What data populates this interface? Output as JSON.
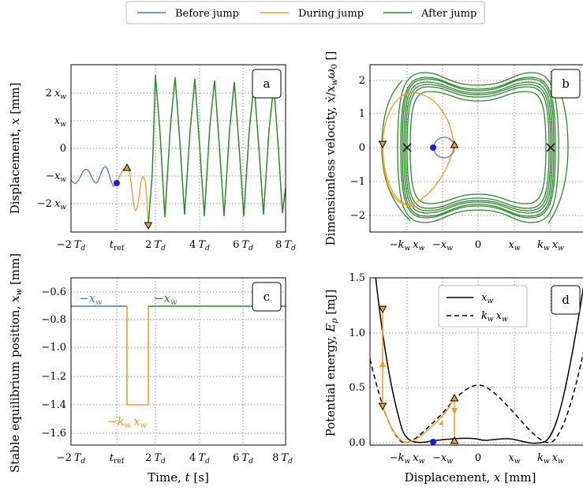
{
  "legend": {
    "items": [
      {
        "label": "Before jump",
        "color": "#4a78c9"
      },
      {
        "label": "During jump",
        "color": "#f59b1c"
      },
      {
        "label": "After jump",
        "color": "#2a8a2a"
      }
    ]
  },
  "chart_data": [
    {
      "panel": "a",
      "type": "line",
      "ylabel": "Displacement, x [mm]",
      "xticks": [
        "−2 T_d",
        "t_ref",
        "2 T_d",
        "4 T_d",
        "6 T_d",
        "8 T_d"
      ],
      "yticks": [
        "2 x_w",
        "x_w",
        "0",
        "−x_w",
        "−2 x_w"
      ],
      "grid": true,
      "xlim": [
        -2,
        8
      ],
      "ylim": [
        -3.1,
        3.1
      ],
      "series": [
        {
          "name": "Before jump",
          "x": [
            -2.0,
            -1.75,
            -1.5,
            -1.25,
            -1.0,
            -0.75,
            -0.5,
            -0.25,
            0.0
          ],
          "y": [
            -1.2,
            -0.75,
            -1.1,
            -0.9,
            -0.7,
            -1.3,
            -0.75,
            -1.15,
            -1.3
          ]
        },
        {
          "name": "During jump",
          "x": [
            0.0,
            0.3,
            0.5,
            0.8,
            1.1,
            1.3,
            1.6,
            1.8
          ],
          "y": [
            -1.3,
            -0.8,
            -0.75,
            -2.2,
            -1.9,
            -1.8,
            -2.1,
            -2.35
          ]
        },
        {
          "name": "After jump",
          "x": [
            1.8,
            2.0,
            2.5,
            3.0,
            3.5,
            4.0,
            4.5,
            5.0,
            5.5,
            6.0,
            6.5,
            7.0,
            7.5,
            8.0
          ],
          "y": [
            -2.3,
            2.6,
            -2.6,
            2.5,
            -2.5,
            2.4,
            -2.5,
            2.5,
            -2.5,
            2.4,
            -2.5,
            2.4,
            -2.5,
            -0.3
          ]
        }
      ],
      "markers": [
        {
          "type": "dot",
          "x": 0.0,
          "y": -1.3
        },
        {
          "type": "triangle-up",
          "x": 0.3,
          "y": -0.75
        },
        {
          "type": "triangle-down",
          "x": 1.8,
          "y": -2.35
        }
      ]
    },
    {
      "panel": "b",
      "type": "line",
      "ylabel": "Dimensionless velocity, ẋ/x_w ω_0 []",
      "xticks": [
        "−k_w x_w",
        "−x_w",
        "0",
        "x_w",
        "k_w x_w"
      ],
      "yticks": [
        "2",
        "1",
        "0",
        "−1",
        "−2"
      ],
      "grid": true,
      "xlim": [
        -2.4,
        2.4
      ],
      "ylim": [
        -2.5,
        2.5
      ],
      "markers": [
        {
          "type": "x",
          "x": -2.0,
          "y": 0.0
        },
        {
          "type": "x",
          "x": 2.0,
          "y": 0.0
        },
        {
          "type": "dot",
          "x": -1.2,
          "y": 0.0
        },
        {
          "type": "triangle-up",
          "x": -0.6,
          "y": 0.0
        },
        {
          "type": "triangle-down",
          "x": -2.6,
          "y": 0.1
        }
      ]
    },
    {
      "panel": "c",
      "type": "line",
      "xlabel": "Time, t [s]",
      "ylabel": "Stable equilibrium position, x_w [mm]",
      "xticks": [
        "−2 T_d",
        "t_ref",
        "2 T_d",
        "4 T_d",
        "6 T_d",
        "8 T_d"
      ],
      "yticks": [
        "−0.6",
        "−0.8",
        "−1.0",
        "−1.2",
        "−1.4",
        "−1.6"
      ],
      "ylim": [
        -1.7,
        -0.55
      ],
      "grid": true,
      "annotations": [
        "−x_w",
        "−x_w",
        "−k_w x_w"
      ],
      "series": [
        {
          "name": "Before jump",
          "x": [
            -2.0,
            0.5
          ],
          "y": [
            -0.71,
            -0.71
          ]
        },
        {
          "name": "During jump",
          "x": [
            0.5,
            0.5,
            1.7,
            1.7
          ],
          "y": [
            -0.71,
            -1.4,
            -1.4,
            -0.71
          ]
        },
        {
          "name": "After jump",
          "x": [
            1.7,
            8.0
          ],
          "y": [
            -0.71,
            -0.71
          ]
        }
      ]
    },
    {
      "panel": "d",
      "type": "line",
      "xlabel": "Displacement, x [mm]",
      "ylabel": "Potential energy, E_p [mJ]",
      "xticks": [
        "−k_w x_w",
        "−x_w",
        "0",
        "x_w",
        "k_w x_w"
      ],
      "yticks": [
        "1.5",
        "1.0",
        "0.5",
        "0.0"
      ],
      "ylim": [
        -0.05,
        1.5
      ],
      "grid": true,
      "legend": [
        "x_w",
        "k_w x_w"
      ],
      "markers": [
        {
          "type": "dot",
          "x": -1.2,
          "y": 0.01
        },
        {
          "type": "triangle-down",
          "x": -2.6,
          "y": 1.21
        },
        {
          "type": "triangle-down",
          "x": -2.6,
          "y": 0.32
        },
        {
          "type": "triangle-up",
          "x": -0.6,
          "y": 0.41
        },
        {
          "type": "triangle-up",
          "x": -0.6,
          "y": 0.02
        }
      ]
    }
  ]
}
